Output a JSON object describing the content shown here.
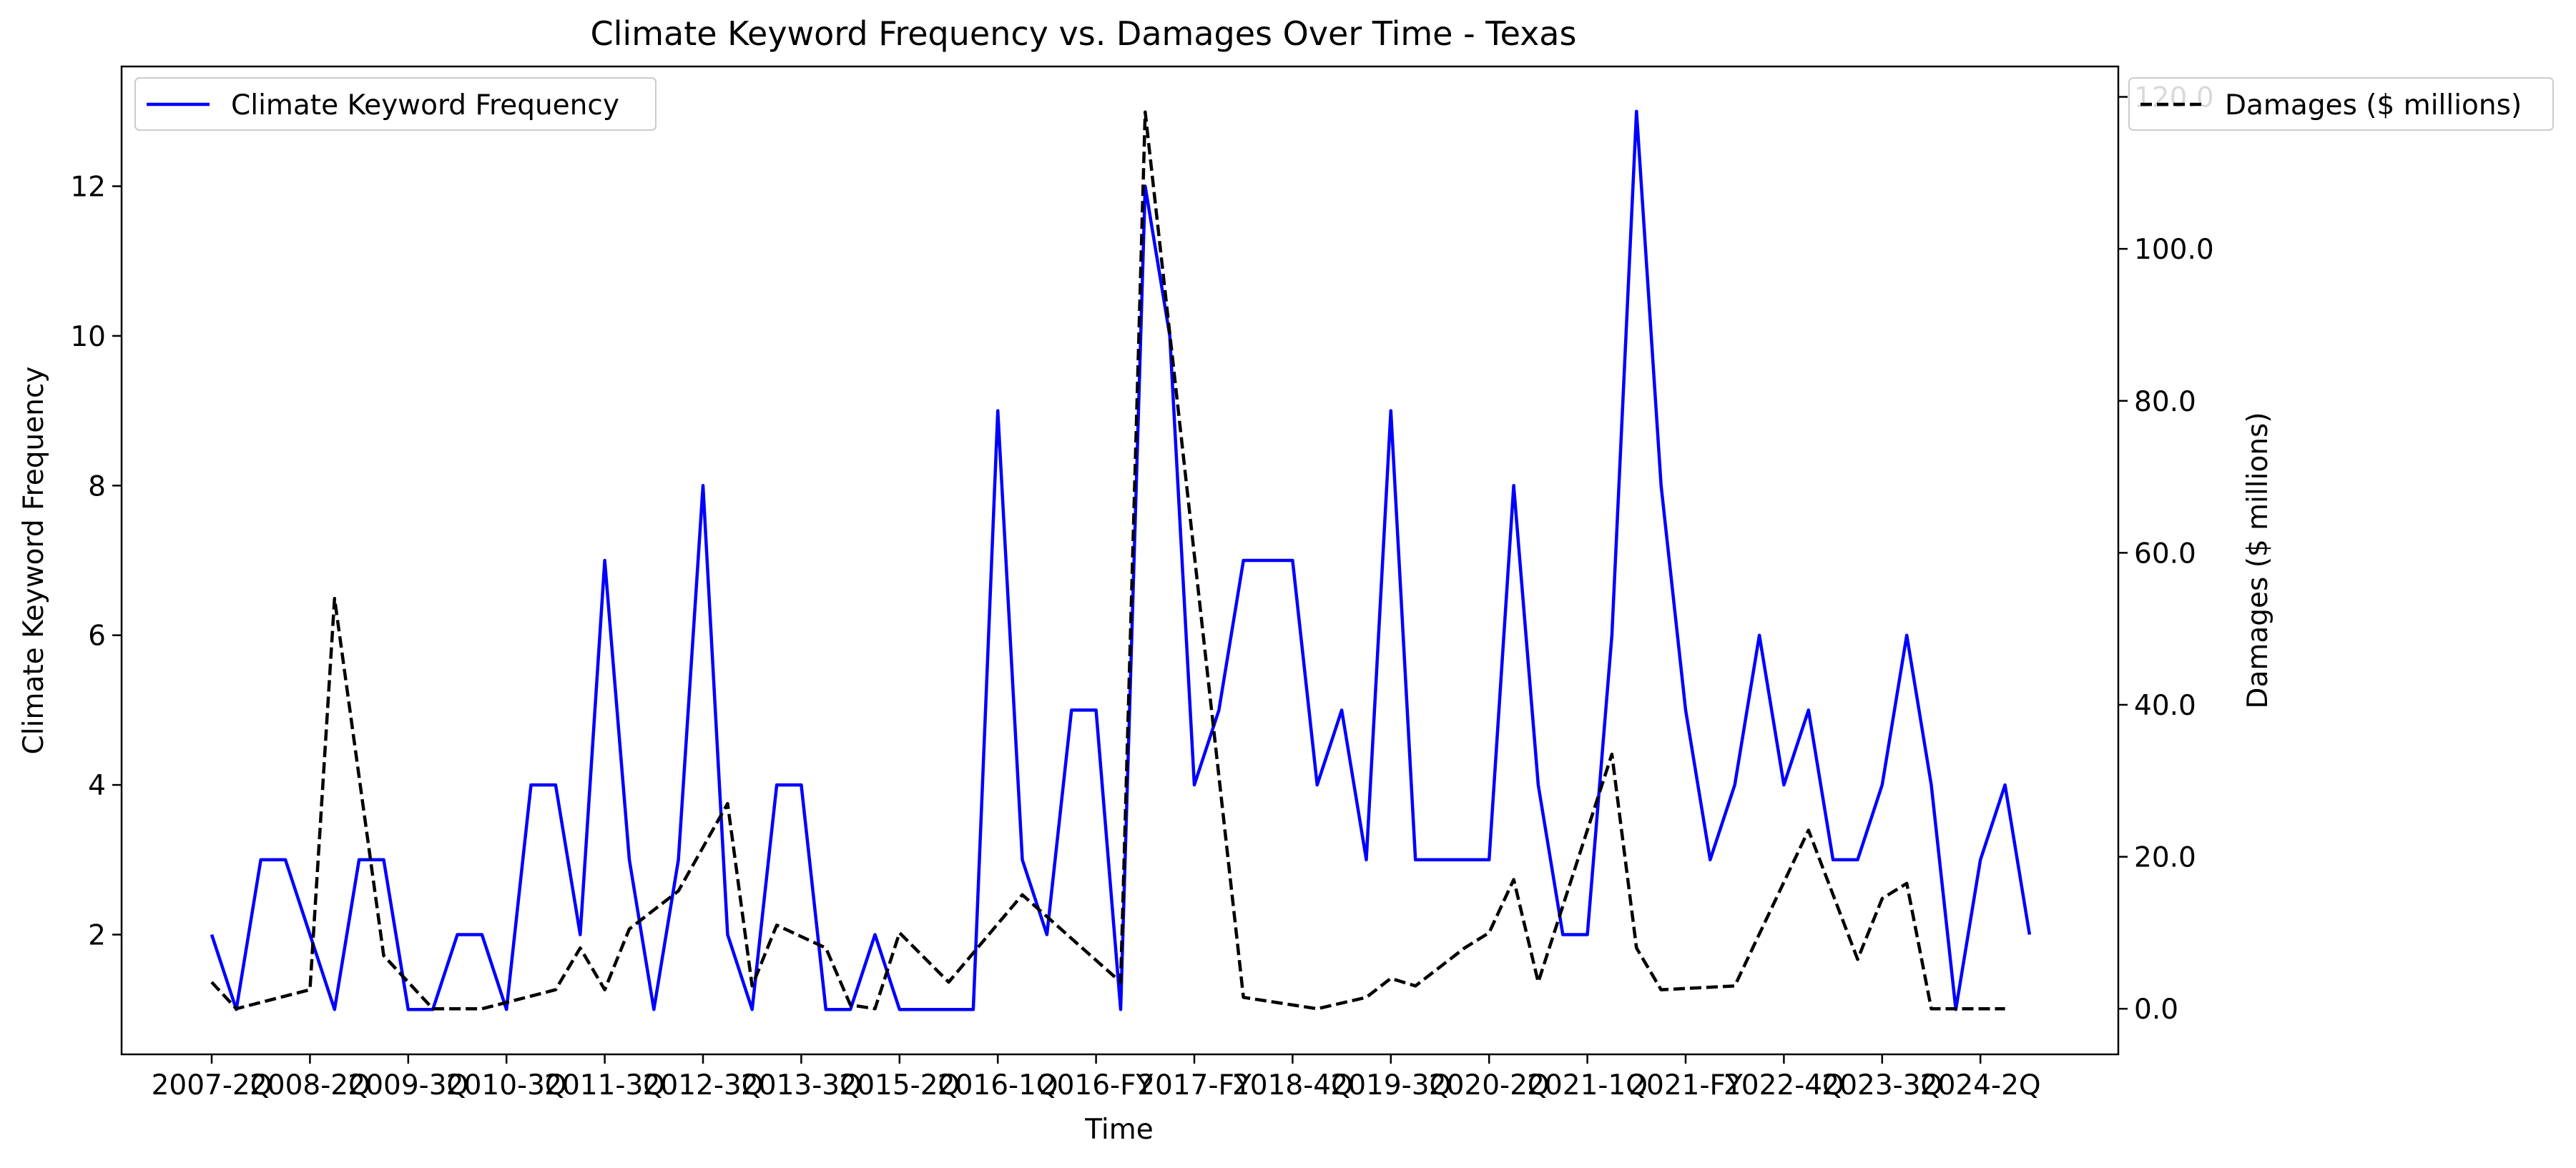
{
  "chart_data": {
    "type": "line",
    "title": "Climate Keyword Frequency vs. Damages Over Time - Texas",
    "xlabel": "Time",
    "ylabel_left": "Climate Keyword Frequency",
    "ylabel_right": "Damages ($ millions)",
    "x_tick_labels": [
      "2007-2Q",
      "2008-2Q",
      "2009-3Q",
      "2010-3Q",
      "2011-3Q",
      "2012-3Q",
      "2013-3Q",
      "2015-2Q",
      "2016-1Q",
      "2016-FY",
      "2017-FY",
      "2018-4Q",
      "2019-3Q",
      "2020-2Q",
      "2021-1Q",
      "2021-FY",
      "2022-4Q",
      "2023-3Q",
      "2024-2Q"
    ],
    "x_tick_index": [
      0,
      4,
      8,
      12,
      16,
      20,
      24,
      28,
      32,
      36,
      40,
      44,
      48,
      52,
      56,
      60,
      64,
      68,
      72
    ],
    "n_points": 75,
    "y_left_ticks": [
      2,
      4,
      6,
      8,
      10,
      12
    ],
    "y_left_lim": [
      0.4,
      13.6
    ],
    "y_right_ticks": [
      0,
      20,
      40,
      60,
      80,
      100,
      120
    ],
    "y_right_tick_labels": [
      "0.0",
      "20.0",
      "40.0",
      "60.0",
      "80.0",
      "100.0",
      "120.0"
    ],
    "y_right_lim": [
      -6,
      124
    ],
    "series": [
      {
        "name": "Climate Keyword Frequency",
        "axis": "left",
        "color": "#0000ff",
        "style": "solid",
        "values": [
          2,
          1,
          3,
          3,
          2,
          1,
          3,
          3,
          1,
          1,
          2,
          2,
          1,
          4,
          4,
          2,
          7,
          3,
          1,
          3,
          8,
          2,
          1,
          4,
          4,
          1,
          1,
          2,
          1,
          1,
          1,
          1,
          9,
          3,
          2,
          5,
          5,
          1,
          12,
          10,
          4,
          5,
          7,
          7,
          7,
          4,
          5,
          3,
          9,
          3,
          3,
          3,
          3,
          8,
          4,
          2,
          2,
          6,
          13,
          8,
          5,
          3,
          4,
          6,
          4,
          5,
          3,
          3,
          4,
          6,
          4,
          1,
          3,
          4,
          2
        ]
      },
      {
        "name": "Damages ($ millions)",
        "axis": "right",
        "color": "#000000",
        "style": "dashed",
        "values": [
          3.5,
          0,
          null,
          null,
          2.5,
          54,
          null,
          7,
          null,
          0,
          null,
          0,
          null,
          null,
          2.5,
          8,
          2.5,
          10.5,
          null,
          15.5,
          null,
          27,
          3,
          11,
          null,
          8,
          0.5,
          0,
          10,
          null,
          3.5,
          null,
          null,
          15,
          null,
          null,
          null,
          3.5,
          118,
          null,
          null,
          null,
          1.5,
          null,
          null,
          0,
          null,
          1.5,
          4,
          3,
          null,
          8,
          10,
          17,
          3.5,
          null,
          null,
          33.5,
          8,
          2.5,
          null,
          null,
          3,
          null,
          null,
          23.5,
          null,
          6.5,
          14.5,
          16.5,
          0,
          0,
          0,
          0,
          null
        ]
      }
    ],
    "legend_left_label": "Climate Keyword Frequency",
    "legend_right_label": "Damages ($ millions)",
    "grid": false
  }
}
